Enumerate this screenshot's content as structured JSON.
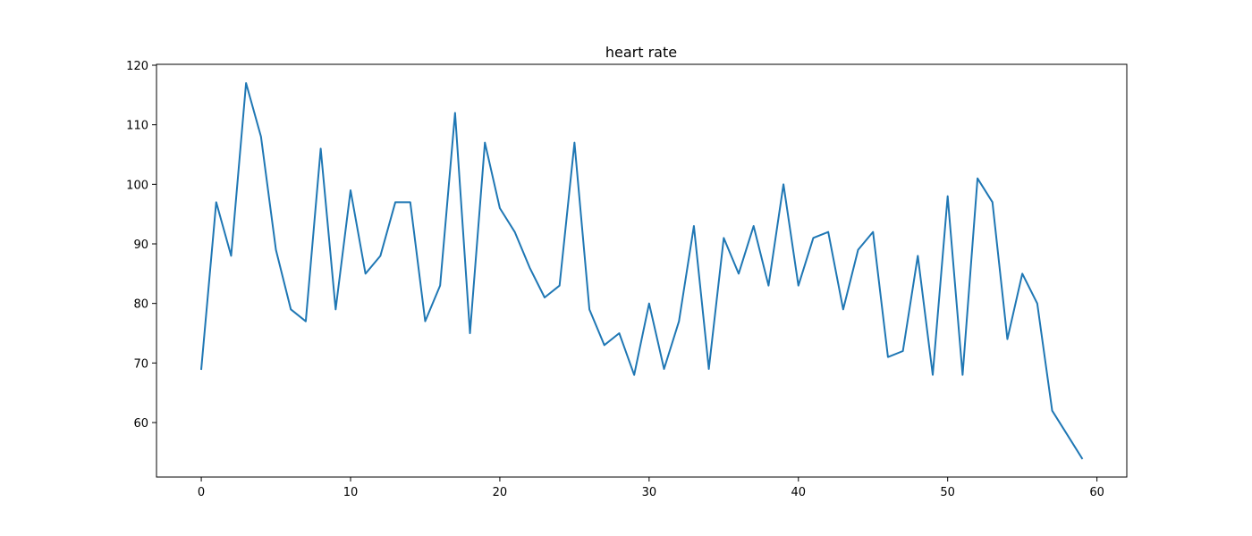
{
  "chart_data": {
    "type": "line",
    "title": "heart rate",
    "xlabel": "",
    "ylabel": "",
    "xlim": [
      -3,
      62
    ],
    "ylim": [
      50.85,
      120.15
    ],
    "x_ticks": [
      0,
      10,
      20,
      30,
      40,
      50,
      60
    ],
    "y_ticks": [
      60,
      70,
      80,
      90,
      100,
      110,
      120
    ],
    "grid": false,
    "legend": "none",
    "series": [
      {
        "color": "#1f77b4",
        "x": [
          0,
          1,
          2,
          3,
          4,
          5,
          6,
          7,
          8,
          9,
          10,
          11,
          12,
          13,
          14,
          15,
          16,
          17,
          18,
          19,
          20,
          21,
          22,
          23,
          24,
          25,
          26,
          27,
          28,
          29,
          30,
          31,
          32,
          33,
          34,
          35,
          36,
          37,
          38,
          39,
          40,
          41,
          42,
          43,
          44,
          45,
          46,
          47,
          48,
          49,
          50,
          51,
          52,
          53,
          54,
          55,
          56,
          57,
          58,
          59
        ],
        "values": [
          69,
          97,
          88,
          117,
          108,
          89,
          79,
          77,
          106,
          79,
          99,
          85,
          88,
          97,
          97,
          77,
          83,
          112,
          75,
          107,
          96,
          92,
          86,
          81,
          83,
          107,
          79,
          73,
          75,
          68,
          80,
          69,
          77,
          93,
          69,
          91,
          85,
          93,
          83,
          100,
          83,
          91,
          92,
          79,
          89,
          92,
          71,
          72,
          88,
          68,
          98,
          68,
          101,
          97,
          74,
          85,
          80,
          62,
          58,
          54
        ]
      }
    ]
  }
}
